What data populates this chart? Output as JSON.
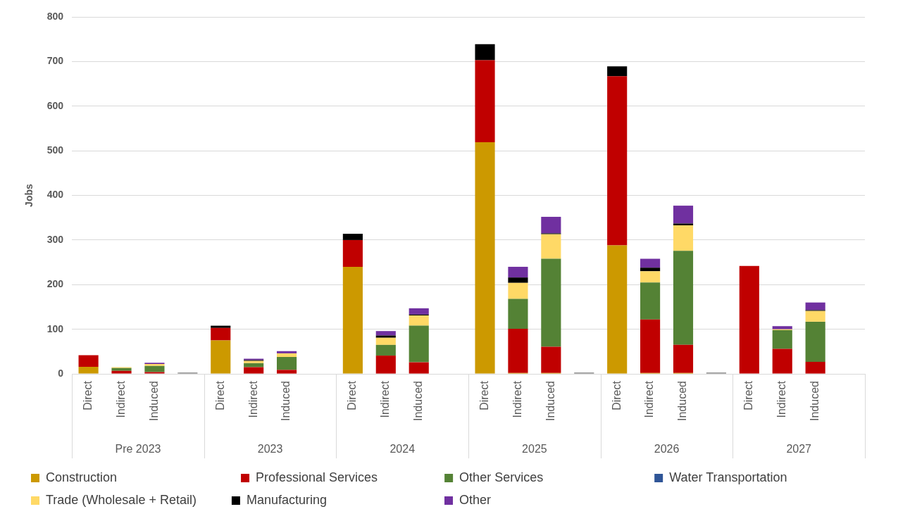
{
  "chart_data": {
    "type": "bar",
    "stacked": true,
    "ylabel": "Jobs",
    "categories": [
      "Direct",
      "Indirect",
      "Induced",
      null,
      "Direct",
      "Indirect",
      "Induced",
      null,
      "Direct",
      "Indirect",
      "Induced",
      null,
      "Direct",
      "Indirect",
      "Induced",
      null,
      "Direct",
      "Indirect",
      "Induced",
      null,
      "Direct",
      "Indirect",
      "Induced",
      null
    ],
    "annotations": [
      "Pre 2023",
      "2023",
      "2024",
      "2025",
      "2026",
      "2027"
    ],
    "series": [
      {
        "name": "Construction",
        "color": "#cc9900",
        "values": [
          16,
          0,
          0,
          null,
          75,
          0,
          0,
          null,
          240,
          0,
          0,
          null,
          519,
          2,
          2,
          null,
          288,
          2,
          2,
          null,
          0,
          0,
          0,
          null
        ]
      },
      {
        "name": "Professional Services",
        "color": "#c00000",
        "values": [
          26,
          7,
          4,
          null,
          28,
          15,
          9,
          null,
          60,
          41,
          26,
          null,
          184,
          99,
          59,
          null,
          379,
          120,
          63,
          null,
          242,
          56,
          27,
          null
        ]
      },
      {
        "name": "Other Services",
        "color": "#548235",
        "values": [
          0,
          6,
          14,
          null,
          0,
          9,
          29,
          null,
          0,
          24,
          82,
          null,
          0,
          67,
          197,
          null,
          0,
          83,
          211,
          null,
          0,
          42,
          90,
          null
        ]
      },
      {
        "name": "Water Transportation",
        "color": "#2f5597",
        "values": [
          0,
          0,
          0,
          null,
          0,
          0,
          0,
          null,
          0,
          0,
          0,
          null,
          0,
          0,
          0,
          null,
          0,
          0,
          0,
          null,
          0,
          0,
          0,
          null
        ]
      },
      {
        "name": "Trade (Wholesale + Retail)",
        "color": "#ffd966",
        "values": [
          0,
          2,
          4,
          null,
          0,
          5,
          8,
          null,
          0,
          16,
          23,
          null,
          0,
          36,
          55,
          null,
          0,
          25,
          57,
          null,
          0,
          2,
          24,
          null
        ]
      },
      {
        "name": "Manufacturing",
        "color": "#000000",
        "values": [
          null,
          0,
          0,
          null,
          5,
          2,
          0,
          null,
          14,
          5,
          2,
          null,
          36,
          12,
          2,
          null,
          22,
          8,
          4,
          null,
          0,
          null,
          2,
          null
        ]
      },
      {
        "name": "Other",
        "color": "#7030a0",
        "values": [
          0,
          null,
          3,
          null,
          0,
          3,
          5,
          null,
          0,
          10,
          14,
          null,
          0,
          24,
          37,
          null,
          0,
          20,
          40,
          null,
          0,
          7,
          17,
          null
        ]
      },
      {
        "color": "#808080",
        "values": [
          null,
          null,
          null,
          3,
          null,
          null,
          null,
          null,
          null,
          null,
          null,
          null,
          null,
          null,
          null,
          3,
          null,
          null,
          null,
          3,
          null,
          null,
          null,
          null
        ]
      }
    ],
    "ylim": [
      0,
      800
    ],
    "yticks": [
      0,
      100,
      200,
      300,
      400,
      500,
      600,
      700,
      800
    ],
    "grid": "y",
    "legend": "bottom"
  }
}
